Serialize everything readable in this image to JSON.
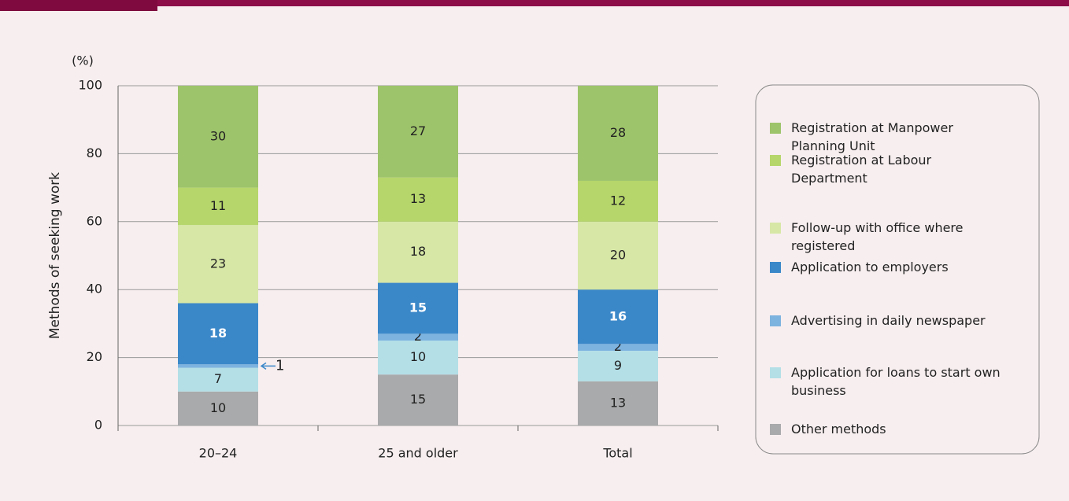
{
  "chart_data": {
    "type": "stacked_bar",
    "unit_label": "(%)",
    "y_label": "Methods of seeking work",
    "categories": [
      "20–24",
      "25 and older",
      "Total"
    ],
    "ylim": [
      0,
      100
    ],
    "yticks": [
      0,
      20,
      40,
      60,
      80,
      100
    ],
    "grid": true,
    "series": [
      {
        "name": "Other methods",
        "color": "#a9aaab",
        "values": [
          10,
          15,
          13
        ]
      },
      {
        "name": "Application for loans to start own business",
        "color": "#b4dfe7",
        "values": [
          7,
          10,
          9
        ]
      },
      {
        "name": "Advertising in daily newspaper",
        "color": "#7db3df",
        "values": [
          1,
          2,
          2
        ]
      },
      {
        "name": "Application to employers",
        "color": "#3b88c9",
        "values": [
          18,
          15,
          16
        ]
      },
      {
        "name": "Follow-up with office where registered",
        "color": "#d6e7a6",
        "values": [
          23,
          18,
          20
        ]
      },
      {
        "name": "Registration at Labour Department",
        "color": "#b6d66b",
        "values": [
          11,
          13,
          12
        ]
      },
      {
        "name": "Registration at Manpower Planning Unit",
        "color": "#9ec46b",
        "values": [
          30,
          27,
          28
        ]
      }
    ]
  }
}
